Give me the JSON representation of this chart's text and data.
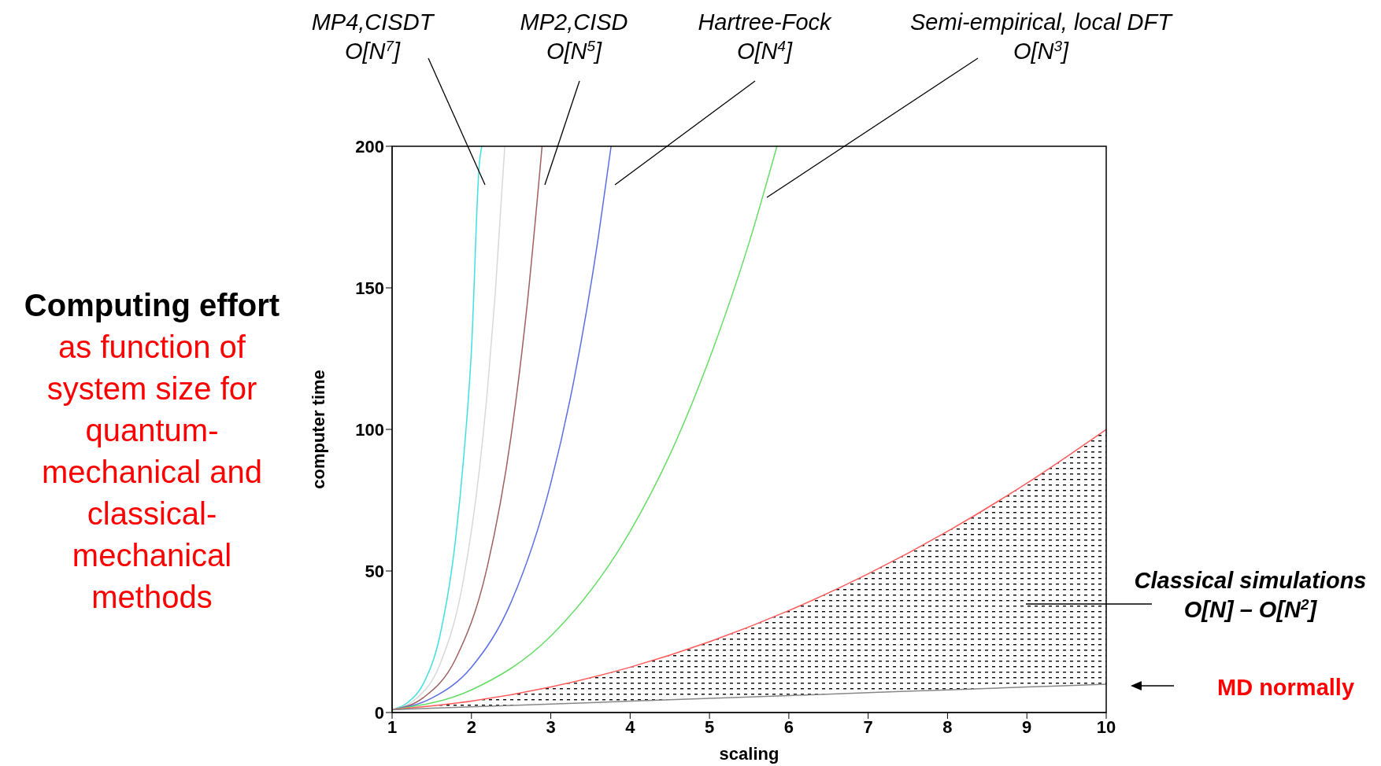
{
  "chart_data": {
    "type": "line",
    "title": "Computing effort",
    "subtitle": "as function of system size for quantum-mechanical and classical-mechanical methods",
    "xlabel": "scaling",
    "ylabel": "computer time",
    "xlim": [
      1,
      10
    ],
    "ylim": [
      0,
      200
    ],
    "xticks": [
      1,
      2,
      3,
      4,
      5,
      6,
      7,
      8,
      9,
      10
    ],
    "yticks": [
      0,
      50,
      100,
      150,
      200
    ],
    "grid": false,
    "marker": "none",
    "line_style": "solid",
    "series": [
      {
        "color": "#40e0e0",
        "x": [
          1,
          1.2,
          1.4,
          1.6,
          1.8,
          1.9,
          2.0,
          2.1,
          2.13
        ],
        "values": [
          1,
          3.6,
          10.5,
          26.8,
          61.2,
          89.4,
          128,
          194,
          200
        ]
      },
      {
        "color": "#d8d8d8",
        "x": [
          1,
          1.3,
          1.6,
          1.9,
          2.1,
          2.2,
          2.3,
          2.42
        ],
        "values": [
          1,
          4.8,
          16.8,
          47,
          85.8,
          113.4,
          148,
          200
        ]
      },
      {
        "color": "#a06060",
        "x": [
          1,
          1.4,
          1.8,
          2.2,
          2.5,
          2.7,
          2.89
        ],
        "values": [
          1,
          5.4,
          18.9,
          51.5,
          97.7,
          143.5,
          200
        ]
      },
      {
        "color": "#5a6ee6",
        "x": [
          1,
          1.5,
          2,
          2.5,
          3,
          3.3,
          3.6,
          3.76
        ],
        "values": [
          1,
          5.1,
          16,
          39,
          81,
          118.6,
          168,
          200
        ]
      },
      {
        "color": "#66dd66",
        "x": [
          1,
          2,
          3,
          4,
          4.5,
          5,
          5.5,
          5.85
        ],
        "values": [
          1,
          8,
          27,
          64,
          91,
          125,
          166,
          200
        ]
      },
      {
        "color": "#ff5a5a",
        "x": [
          1,
          2,
          3,
          4,
          5,
          6,
          7,
          8,
          9,
          10
        ],
        "values": [
          1,
          4,
          9,
          16,
          25,
          36,
          49,
          64,
          81,
          100
        ],
        "lower": [
          1,
          2,
          3,
          4,
          5,
          6,
          7,
          8,
          9,
          10
        ],
        "upper": [
          1,
          4,
          9,
          16,
          25,
          36,
          49,
          64,
          81,
          100
        ]
      },
      {
        "color": "#888888",
        "x": [
          1,
          2,
          3,
          4,
          5,
          6,
          7,
          8,
          9,
          10
        ],
        "values": [
          1,
          2,
          3,
          4,
          5,
          6,
          7,
          8,
          9,
          10
        ]
      }
    ],
    "annotations": [
      "MP4,CISDT\nO[N$^{7}$]",
      "MP2,CISD\nO[N$^{5}$]",
      "Hartree-Fock\nO[N$^{4}$]",
      "Semi-empirical, local DFT\nO[N$^{3}$]",
      "Classical simulations\nO[N] – O[N$^{2}$]",
      "MD normally"
    ]
  }
}
